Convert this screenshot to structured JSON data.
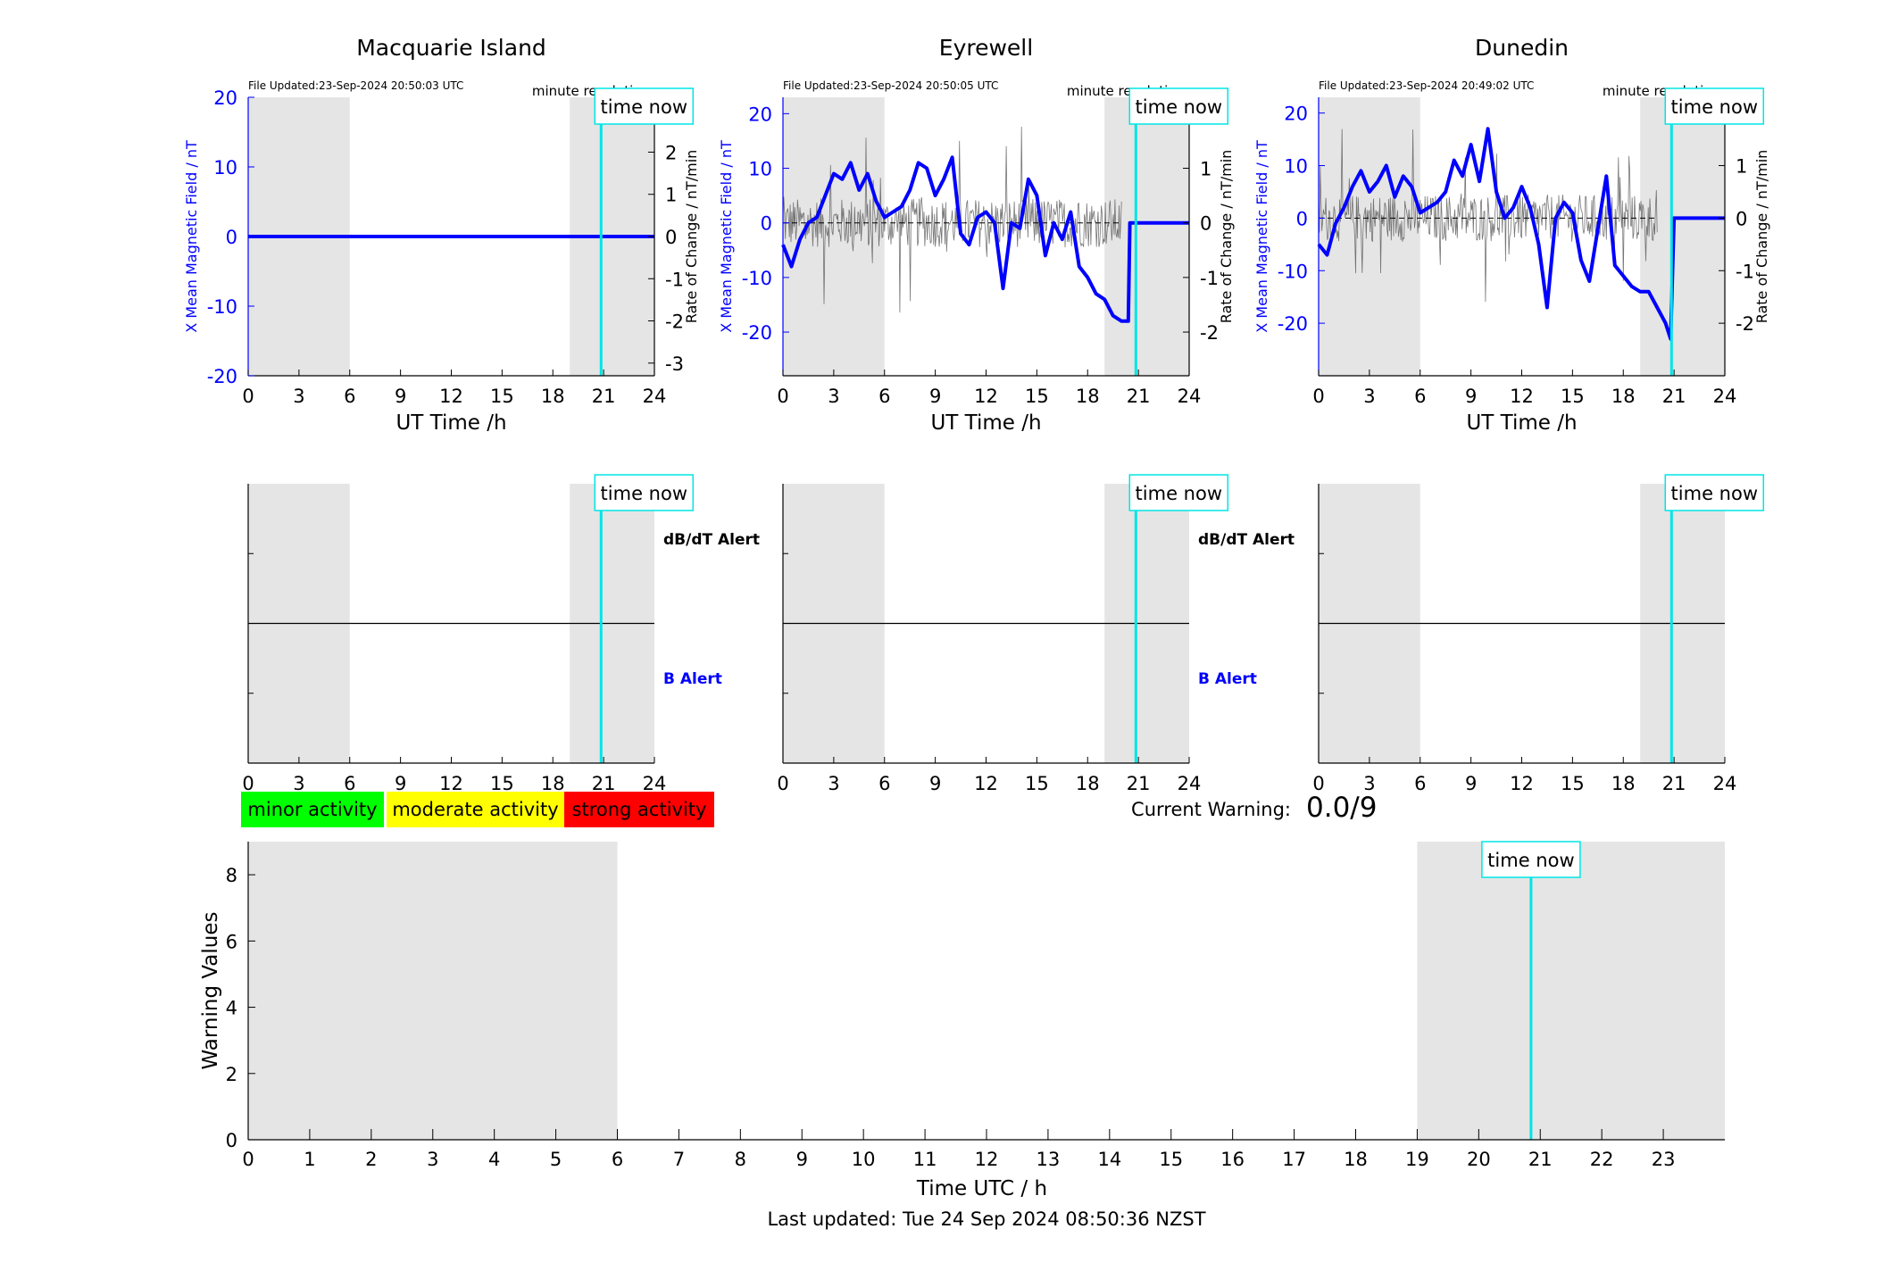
{
  "colors": {
    "shade": "#e5e5e5",
    "blue": "#0000ff",
    "cyan": "#00e5e5",
    "black": "#000000",
    "grey_trace": "#555555",
    "minor": "#00ff00",
    "moderate": "#ffff00",
    "strong": "#ff0000"
  },
  "time_now_label": "time now",
  "chart_data": [
    {
      "type": "line",
      "title": "Macquarie Island",
      "file_updated": "File Updated:23-Sep-2024 20:50:03 UTC",
      "resolution": "minute resolution",
      "xlabel": "UT Time /h",
      "ylabel_left": "X Mean Magnetic Field / nT",
      "ylabel_right": "Rate of Change / nT/min",
      "xlim": [
        0,
        24
      ],
      "xticks": [
        0,
        3,
        6,
        9,
        12,
        15,
        18,
        21,
        24
      ],
      "ylim_left": [
        -20,
        20
      ],
      "yticks_left": [
        -20,
        -10,
        0,
        10,
        20
      ],
      "ylim_right": [
        -3.3,
        3.3
      ],
      "yticks_right": [
        -3,
        -2,
        -1,
        0,
        1,
        2,
        3
      ],
      "shaded": [
        [
          0,
          6
        ],
        [
          19,
          24
        ]
      ],
      "time_now": 20.85,
      "series": [
        {
          "values_x": [
            0,
            24
          ],
          "values_y": [
            0,
            0
          ]
        }
      ]
    },
    {
      "type": "line",
      "title": "Eyrewell",
      "file_updated": "File Updated:23-Sep-2024 20:50:05 UTC",
      "resolution": "minute resolution",
      "xlabel": "UT Time /h",
      "ylabel_left": "X Mean Magnetic Field / nT",
      "ylabel_right": "Rate of Change / nT/min",
      "xlim": [
        0,
        24
      ],
      "xticks": [
        0,
        3,
        6,
        9,
        12,
        15,
        18,
        21,
        24
      ],
      "ylim_left": [
        -28,
        23
      ],
      "yticks_left": [
        -20,
        -10,
        0,
        10,
        20
      ],
      "ylim_right": [
        -2.8,
        2.3
      ],
      "yticks_right": [
        -2,
        -1,
        0,
        1,
        2
      ],
      "shaded": [
        [
          0,
          6
        ],
        [
          19,
          24
        ]
      ],
      "time_now": 20.85,
      "noise_end": 20.0,
      "series": [
        {
          "values_x": [
            0,
            0.5,
            1.0,
            1.5,
            2.0,
            2.5,
            3.0,
            3.5,
            4.0,
            4.5,
            5.0,
            5.5,
            6.0,
            6.5,
            7.0,
            7.5,
            8.0,
            8.5,
            9.0,
            9.5,
            10.0,
            10.5,
            11.0,
            11.5,
            12.0,
            12.5,
            13.0,
            13.5,
            14.0,
            14.5,
            15.0,
            15.5,
            16.0,
            16.5,
            17.0,
            17.5,
            18.0,
            18.5,
            19.0,
            19.5,
            20.0,
            20.4,
            20.5,
            21.0,
            24.0
          ],
          "values_y": [
            -4,
            -8,
            -3,
            0,
            1,
            5,
            9,
            8,
            11,
            6,
            9,
            4,
            1,
            2,
            3,
            6,
            11,
            10,
            5,
            8,
            12,
            -2,
            -4,
            1,
            2,
            0,
            -12,
            0,
            -1,
            8,
            5,
            -6,
            0,
            -3,
            2,
            -8,
            -10,
            -13,
            -14,
            -17,
            -18,
            -18,
            0,
            0,
            0
          ]
        }
      ]
    },
    {
      "type": "line",
      "title": "Dunedin",
      "file_updated": "File Updated:23-Sep-2024 20:49:02 UTC",
      "resolution": "minute resolution",
      "xlabel": "UT Time /h",
      "ylabel_left": "X Mean Magnetic Field / nT",
      "ylabel_right": "Rate of Change / nT/min",
      "xlim": [
        0,
        24
      ],
      "xticks": [
        0,
        3,
        6,
        9,
        12,
        15,
        18,
        21,
        24
      ],
      "ylim_left": [
        -30,
        23
      ],
      "yticks_left": [
        -20,
        -10,
        0,
        10,
        20
      ],
      "ylim_right": [
        -3.0,
        2.3
      ],
      "yticks_right": [
        -2,
        -1,
        0,
        1,
        2
      ],
      "shaded": [
        [
          0,
          6
        ],
        [
          19,
          24
        ]
      ],
      "time_now": 20.85,
      "noise_end": 20.0,
      "series": [
        {
          "values_x": [
            0,
            0.5,
            1.0,
            1.5,
            2.0,
            2.5,
            3.0,
            3.5,
            4.0,
            4.5,
            5.0,
            5.5,
            6.0,
            6.5,
            7.0,
            7.5,
            8.0,
            8.5,
            9.0,
            9.5,
            10.0,
            10.5,
            11.0,
            11.5,
            12.0,
            12.5,
            13.0,
            13.5,
            14.0,
            14.5,
            15.0,
            15.5,
            16.0,
            16.5,
            17.0,
            17.5,
            18.0,
            18.5,
            19.0,
            19.5,
            20.0,
            20.5,
            20.8,
            21.0,
            24.0
          ],
          "values_y": [
            -5,
            -7,
            -1,
            2,
            6,
            9,
            5,
            7,
            10,
            4,
            8,
            6,
            1,
            2,
            3,
            5,
            11,
            8,
            14,
            7,
            17,
            5,
            0,
            2,
            6,
            2,
            -5,
            -17,
            0,
            3,
            1,
            -8,
            -12,
            -2,
            8,
            -9,
            -11,
            -13,
            -14,
            -14,
            -17,
            -20,
            -23,
            0,
            0
          ]
        }
      ]
    },
    {
      "type": "line",
      "xlabel": "",
      "xlim": [
        0,
        24
      ],
      "xticks": [
        0,
        3,
        6,
        9,
        12,
        15,
        18,
        21,
        24
      ],
      "alert_labels": [
        "dB/dT Alert",
        "B Alert"
      ],
      "shaded": [
        [
          0,
          6
        ],
        [
          19,
          24
        ]
      ],
      "time_now": 20.85,
      "divider_y": 0.5
    },
    {
      "type": "line",
      "xlabel": "",
      "xlim": [
        0,
        24
      ],
      "xticks": [
        0,
        3,
        6,
        9,
        12,
        15,
        18,
        21,
        24
      ],
      "alert_labels": [
        "dB/dT Alert",
        "B Alert"
      ],
      "shaded": [
        [
          0,
          6
        ],
        [
          19,
          24
        ]
      ],
      "time_now": 20.85,
      "divider_y": 0.5
    },
    {
      "type": "line",
      "xlabel": "",
      "xlim": [
        0,
        24
      ],
      "xticks": [
        0,
        3,
        6,
        9,
        12,
        15,
        18,
        21,
        24
      ],
      "alert_labels": [],
      "shaded": [
        [
          0,
          6
        ],
        [
          19,
          24
        ]
      ],
      "time_now": 20.85,
      "divider_y": 0.5
    },
    {
      "type": "line",
      "xlabel": "Time UTC / h",
      "ylabel": "Warning Values",
      "xlim": [
        0,
        24
      ],
      "xticks": [
        0,
        1,
        2,
        3,
        4,
        5,
        6,
        7,
        8,
        9,
        10,
        11,
        12,
        13,
        14,
        15,
        16,
        17,
        18,
        19,
        20,
        21,
        22,
        23
      ],
      "ylim": [
        0,
        9
      ],
      "yticks": [
        0,
        2,
        4,
        6,
        8
      ],
      "shaded": [
        [
          0,
          6
        ],
        [
          19,
          24
        ]
      ],
      "time_now": 20.85
    }
  ],
  "legend": [
    {
      "label": "minor activity",
      "color": "#00ff00"
    },
    {
      "label": "moderate activity",
      "color": "#ffff00"
    },
    {
      "label": "strong activity",
      "color": "#ff0000"
    }
  ],
  "current_warning": {
    "label": "Current Warning:",
    "value": "0.0/9"
  },
  "footer": {
    "last_updated": "Last updated: Tue 24 Sep 2024 08:50:36 NZST"
  }
}
